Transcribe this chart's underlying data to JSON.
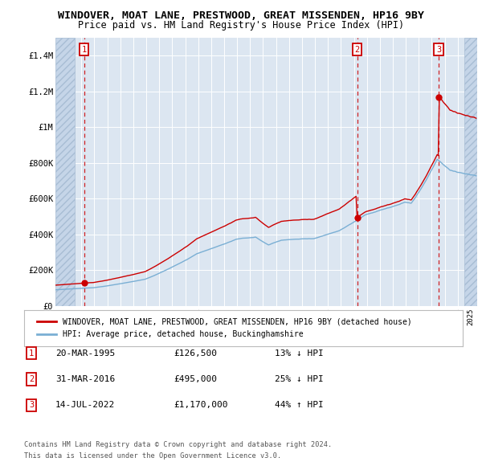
{
  "title": "WINDOVER, MOAT LANE, PRESTWOOD, GREAT MISSENDEN, HP16 9BY",
  "subtitle": "Price paid vs. HM Land Registry's House Price Index (HPI)",
  "title_fontsize": 9.5,
  "subtitle_fontsize": 8.5,
  "background_color": "#ffffff",
  "plot_bg_color": "#dce6f1",
  "ylim": [
    0,
    1500000
  ],
  "yticks": [
    0,
    200000,
    400000,
    600000,
    800000,
    1000000,
    1200000,
    1400000
  ],
  "ytick_labels": [
    "£0",
    "£200K",
    "£400K",
    "£600K",
    "£800K",
    "£1M",
    "£1.2M",
    "£1.4M"
  ],
  "sale_t": [
    1995.208,
    2016.25,
    2022.542
  ],
  "sale_prices": [
    126500,
    495000,
    1170000
  ],
  "sale_labels": [
    "1",
    "2",
    "3"
  ],
  "sale_date_strs": [
    "20-MAR-1995",
    "31-MAR-2016",
    "14-JUL-2022"
  ],
  "sale_price_strs": [
    "£126,500",
    "£495,000",
    "£1,170,000"
  ],
  "sale_hpi_strs": [
    "13% ↓ HPI",
    "25% ↓ HPI",
    "44% ↑ HPI"
  ],
  "legend_label_red": "WINDOVER, MOAT LANE, PRESTWOOD, GREAT MISSENDEN, HP16 9BY (detached house)",
  "legend_label_blue": "HPI: Average price, detached house, Buckinghamshire",
  "footer_line1": "Contains HM Land Registry data © Crown copyright and database right 2024.",
  "footer_line2": "This data is licensed under the Open Government Licence v3.0.",
  "red_color": "#cc0000",
  "blue_color": "#7aafd4",
  "xlim_start": 1993.0,
  "xlim_end": 2025.5,
  "hatch_end": 1994.5,
  "hatch_start": 2024.5
}
